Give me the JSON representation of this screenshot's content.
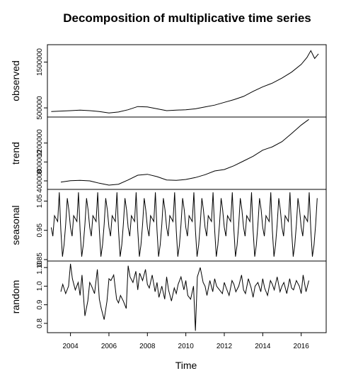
{
  "chart_data": {
    "type": "line",
    "title": "Decomposition of multiplicative time series",
    "xlabel": "Time",
    "x_range": [
      2002.8,
      2017.3
    ],
    "x_ticks": [
      2004,
      2006,
      2008,
      2010,
      2012,
      2014,
      2016
    ],
    "grid": false,
    "panels": [
      {
        "name": "observed",
        "ylabel": "observed",
        "y_range": [
          300000,
          1880000
        ],
        "y_ticks": [
          500000,
          1500000
        ],
        "y_tick_labels": [
          "500000",
          "1500000"
        ],
        "x": [
          2003.0,
          2003.5,
          2004.0,
          2004.5,
          2005.0,
          2005.5,
          2006.0,
          2006.5,
          2007.0,
          2007.5,
          2008.0,
          2008.5,
          2009.0,
          2009.5,
          2010.0,
          2010.5,
          2011.0,
          2011.5,
          2012.0,
          2012.5,
          2013.0,
          2013.5,
          2014.0,
          2014.5,
          2015.0,
          2015.5,
          2016.0,
          2016.3,
          2016.5,
          2016.7,
          2016.9
        ],
        "values": [
          420000,
          430000,
          440000,
          450000,
          440000,
          420000,
          390000,
          410000,
          460000,
          530000,
          520000,
          480000,
          440000,
          450000,
          460000,
          480000,
          520000,
          560000,
          620000,
          680000,
          750000,
          860000,
          960000,
          1040000,
          1150000,
          1280000,
          1450000,
          1600000,
          1750000,
          1580000,
          1680000
        ]
      },
      {
        "name": "trend",
        "ylabel": "trend",
        "y_range": [
          220000,
          1750000
        ],
        "y_ticks": [
          400000,
          800000,
          1200000
        ],
        "y_tick_labels": [
          "400000",
          "800000",
          "1200000"
        ],
        "x": [
          2003.5,
          2004.0,
          2004.5,
          2005.0,
          2005.5,
          2006.0,
          2006.5,
          2007.0,
          2007.5,
          2008.0,
          2008.5,
          2009.0,
          2009.5,
          2010.0,
          2010.5,
          2011.0,
          2011.5,
          2012.0,
          2012.5,
          2013.0,
          2013.5,
          2014.0,
          2014.5,
          2015.0,
          2015.5,
          2016.0,
          2016.4
        ],
        "values": [
          375000,
          405000,
          410000,
          400000,
          350000,
          310000,
          330000,
          420000,
          520000,
          540000,
          490000,
          420000,
          410000,
          430000,
          470000,
          530000,
          610000,
          640000,
          720000,
          820000,
          920000,
          1050000,
          1120000,
          1230000,
          1400000,
          1580000,
          1700000
        ]
      },
      {
        "name": "seasonal",
        "ylabel": "seasonal",
        "y_range": [
          0.845,
          1.09
        ],
        "y_ticks": [
          0.85,
          0.95,
          1.05
        ],
        "y_tick_labels": [
          "0.85",
          "0.95",
          "1.05"
        ],
        "start": 2003.0,
        "end": 2016.9,
        "monthly_pattern": [
          0.96,
          0.93,
          1.0,
          0.99,
          0.98,
          1.08,
          0.95,
          0.86,
          0.9,
          0.97,
          1.06,
          1.02
        ]
      },
      {
        "name": "random",
        "ylabel": "random",
        "y_range": [
          0.75,
          1.135
        ],
        "y_ticks": [
          0.8,
          0.9,
          1.0,
          1.1
        ],
        "y_tick_labels": [
          "0.8",
          "0.9",
          "1.0",
          "1.10"
        ],
        "x": [
          2003.5,
          2003.6,
          2003.75,
          2003.9,
          2004.0,
          2004.1,
          2004.25,
          2004.4,
          2004.5,
          2004.6,
          2004.75,
          2004.9,
          2005.0,
          2005.1,
          2005.25,
          2005.4,
          2005.5,
          2005.6,
          2005.75,
          2005.9,
          2006.0,
          2006.1,
          2006.25,
          2006.4,
          2006.5,
          2006.6,
          2006.75,
          2006.9,
          2007.0,
          2007.1,
          2007.25,
          2007.4,
          2007.5,
          2007.6,
          2007.75,
          2007.9,
          2008.0,
          2008.1,
          2008.25,
          2008.4,
          2008.5,
          2008.6,
          2008.75,
          2008.9,
          2009.0,
          2009.1,
          2009.25,
          2009.4,
          2009.5,
          2009.6,
          2009.75,
          2009.9,
          2010.0,
          2010.1,
          2010.25,
          2010.4,
          2010.5,
          2010.6,
          2010.75,
          2010.9,
          2011.0,
          2011.1,
          2011.25,
          2011.4,
          2011.5,
          2011.6,
          2011.75,
          2011.9,
          2012.0,
          2012.1,
          2012.25,
          2012.4,
          2012.5,
          2012.6,
          2012.75,
          2012.9,
          2013.0,
          2013.1,
          2013.25,
          2013.4,
          2013.5,
          2013.6,
          2013.75,
          2013.9,
          2014.0,
          2014.1,
          2014.25,
          2014.4,
          2014.5,
          2014.6,
          2014.75,
          2014.9,
          2015.0,
          2015.1,
          2015.25,
          2015.4,
          2015.5,
          2015.6,
          2015.75,
          2015.9,
          2016.0,
          2016.1,
          2016.25,
          2016.4
        ],
        "values": [
          0.97,
          1.01,
          0.96,
          1.0,
          1.12,
          1.04,
          0.98,
          1.02,
          0.95,
          1.06,
          0.84,
          0.92,
          1.02,
          1.0,
          0.96,
          1.09,
          0.93,
          0.88,
          0.82,
          0.92,
          1.04,
          1.03,
          1.06,
          0.93,
          0.91,
          0.95,
          0.92,
          0.88,
          1.11,
          1.05,
          1.02,
          1.08,
          0.98,
          1.07,
          1.03,
          1.09,
          1.01,
          0.99,
          1.06,
          0.97,
          1.02,
          0.94,
          1.0,
          0.93,
          1.05,
          0.98,
          0.92,
          0.99,
          0.96,
          1.01,
          1.05,
          0.98,
          1.03,
          0.95,
          0.93,
          1.0,
          0.76,
          1.05,
          1.1,
          1.02,
          1.0,
          0.95,
          1.03,
          0.97,
          1.04,
          1.0,
          0.98,
          0.96,
          1.02,
          0.99,
          0.95,
          1.03,
          1.01,
          0.97,
          1.0,
          1.06,
          0.98,
          0.96,
          1.04,
          0.99,
          0.94,
          1.0,
          1.02,
          0.97,
          1.04,
          0.99,
          0.95,
          1.03,
          1.01,
          0.98,
          1.05,
          0.97,
          1.0,
          1.02,
          0.96,
          1.04,
          0.99,
          0.98,
          1.03,
          1.0,
          0.96,
          1.06,
          0.97,
          1.03
        ]
      }
    ]
  }
}
